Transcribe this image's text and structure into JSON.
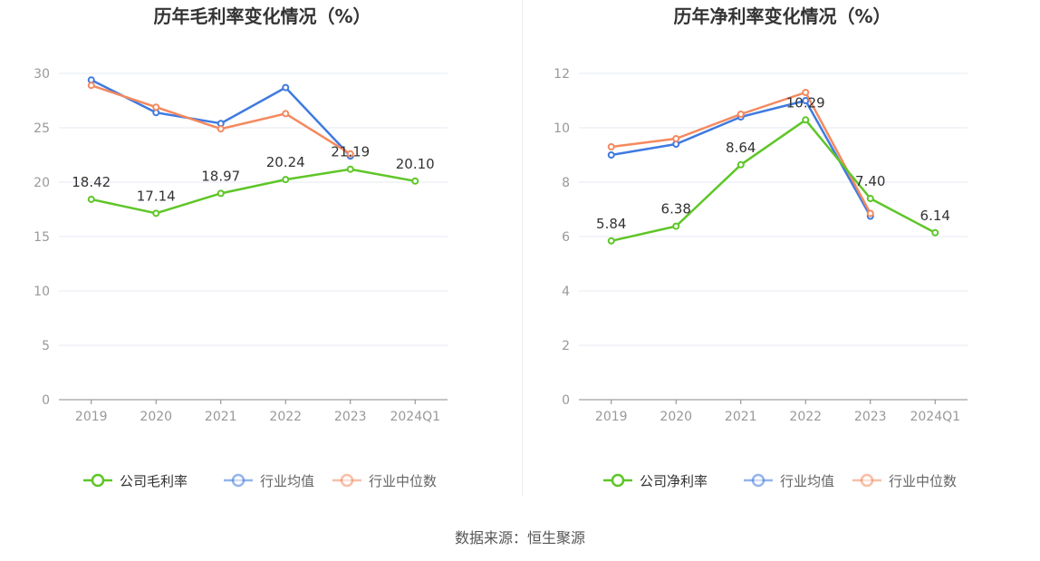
{
  "colors": {
    "company": "#5ec627",
    "industry_avg": "#3f7ae0",
    "industry_median": "#f4895f",
    "grid": "#e6e8f2",
    "axis": "#999999"
  },
  "source_text": "数据来源：恒生聚源",
  "chart_data": [
    {
      "type": "line",
      "title": "历年毛利率变化情况（%）",
      "categories": [
        "2019",
        "2020",
        "2021",
        "2022",
        "2023",
        "2024Q1"
      ],
      "yticks": [
        0,
        5,
        10,
        15,
        20,
        25,
        30
      ],
      "ylim": [
        0,
        30
      ],
      "grid": true,
      "legend_position": "bottom-center",
      "series": [
        {
          "name": "公司毛利率",
          "key": "company",
          "values": [
            18.42,
            17.14,
            18.97,
            20.24,
            21.19,
            20.1
          ],
          "labels": [
            "18.42",
            "17.14",
            "18.97",
            "20.24",
            "21.19",
            "20.10"
          ]
        },
        {
          "name": "行业均值",
          "key": "industry_avg",
          "values": [
            29.4,
            26.4,
            25.4,
            28.7,
            22.4,
            null
          ]
        },
        {
          "name": "行业中位数",
          "key": "industry_median",
          "values": [
            28.9,
            26.9,
            24.9,
            26.3,
            22.6,
            null
          ]
        }
      ]
    },
    {
      "type": "line",
      "title": "历年净利率变化情况（%）",
      "categories": [
        "2019",
        "2020",
        "2021",
        "2022",
        "2023",
        "2024Q1"
      ],
      "yticks": [
        0,
        2,
        4,
        6,
        8,
        10,
        12
      ],
      "ylim": [
        0,
        12
      ],
      "grid": true,
      "legend_position": "bottom-center",
      "series": [
        {
          "name": "公司净利率",
          "key": "company",
          "values": [
            5.84,
            6.38,
            8.64,
            10.29,
            7.4,
            6.14
          ],
          "labels": [
            "5.84",
            "6.38",
            "8.64",
            "10.29",
            "7.40",
            "6.14"
          ]
        },
        {
          "name": "行业均值",
          "key": "industry_avg",
          "values": [
            9.0,
            9.4,
            10.4,
            11.0,
            6.75,
            null
          ]
        },
        {
          "name": "行业中位数",
          "key": "industry_median",
          "values": [
            9.3,
            9.6,
            10.5,
            11.3,
            6.85,
            null
          ]
        }
      ]
    }
  ]
}
